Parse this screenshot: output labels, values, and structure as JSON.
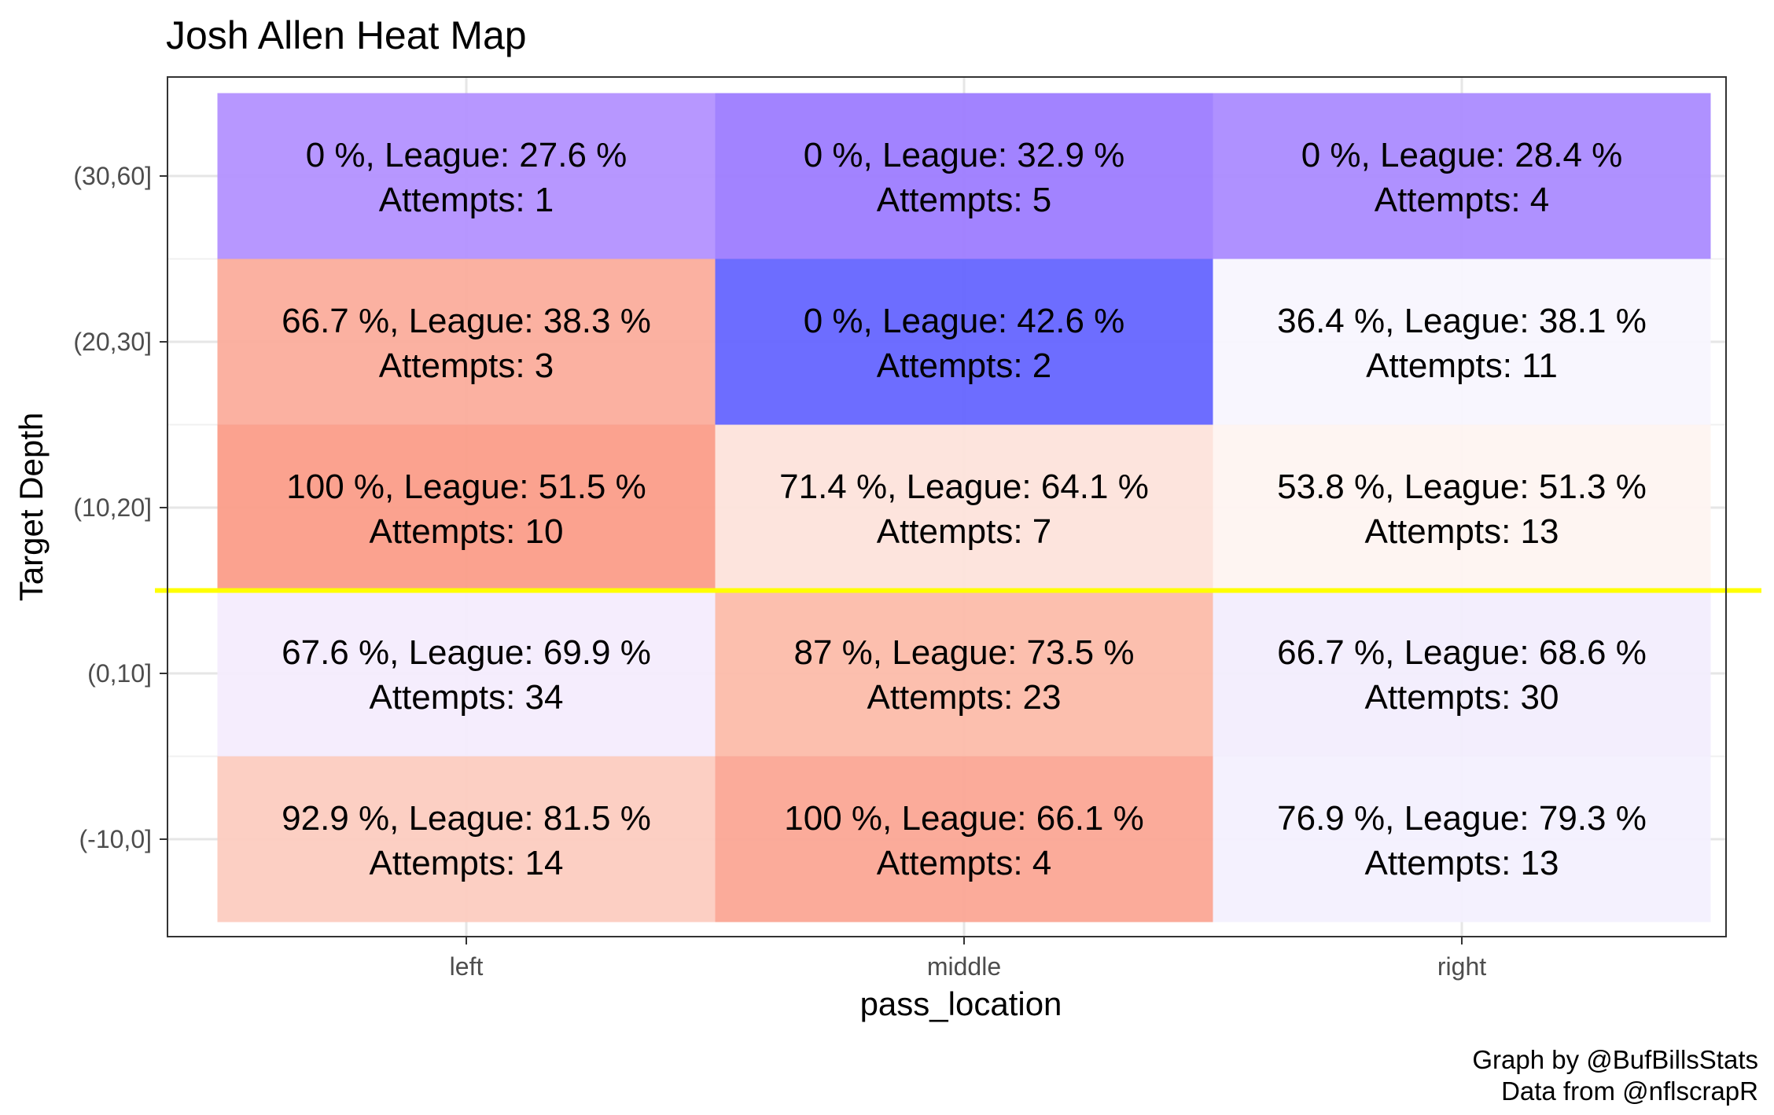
{
  "chart_data": {
    "type": "heatmap",
    "title": "Josh Allen Heat Map",
    "xlabel": "pass_location",
    "ylabel": "Target Depth",
    "x_categories": [
      "left",
      "middle",
      "right"
    ],
    "y_categories": [
      "(-10,0]",
      "(0,10]",
      "(10,20]",
      "(20,30]",
      "(30,60]"
    ],
    "grid": true,
    "reference_line": {
      "between_y": [
        "(0,10]",
        "(10,20]"
      ],
      "color": "#ffff00"
    },
    "cells": [
      {
        "x": "left",
        "y": "(30,60]",
        "label": "0 %, League: 27.6 %",
        "attempts_label": "Attempts: 1",
        "completion_pct": 0,
        "league_pct": 27.6,
        "attempts": 1,
        "color": "#b28fff"
      },
      {
        "x": "middle",
        "y": "(30,60]",
        "label": "0 %, League: 32.9 %",
        "attempts_label": "Attempts: 5",
        "completion_pct": 0,
        "league_pct": 32.9,
        "attempts": 5,
        "color": "#9b7aff"
      },
      {
        "x": "right",
        "y": "(30,60]",
        "label": "0 %, League: 28.4 %",
        "attempts_label": "Attempts: 4",
        "completion_pct": 0,
        "league_pct": 28.4,
        "attempts": 4,
        "color": "#a989ff"
      },
      {
        "x": "left",
        "y": "(20,30]",
        "label": "66.7 %, League: 38.3 %",
        "attempts_label": "Attempts: 3",
        "completion_pct": 66.7,
        "league_pct": 38.3,
        "attempts": 3,
        "color": "#fbab9a"
      },
      {
        "x": "middle",
        "y": "(20,30]",
        "label": "0 %, League: 42.6 %",
        "attempts_label": "Attempts: 2",
        "completion_pct": 0,
        "league_pct": 42.6,
        "attempts": 2,
        "color": "#6262ff"
      },
      {
        "x": "right",
        "y": "(20,30]",
        "label": "36.4 %, League: 38.1 %",
        "attempts_label": "Attempts: 11",
        "completion_pct": 36.4,
        "league_pct": 38.1,
        "attempts": 11,
        "color": "#f8f5fe"
      },
      {
        "x": "left",
        "y": "(10,20]",
        "label": "100 %, League: 51.5 %",
        "attempts_label": "Attempts: 10",
        "completion_pct": 100,
        "league_pct": 51.5,
        "attempts": 10,
        "color": "#fb9b87"
      },
      {
        "x": "middle",
        "y": "(10,20]",
        "label": "71.4 %, League: 64.1 %",
        "attempts_label": "Attempts: 7",
        "completion_pct": 71.4,
        "league_pct": 64.1,
        "attempts": 7,
        "color": "#fde2da"
      },
      {
        "x": "right",
        "y": "(10,20]",
        "label": "53.8 %, League: 51.3 %",
        "attempts_label": "Attempts: 13",
        "completion_pct": 53.8,
        "league_pct": 51.3,
        "attempts": 13,
        "color": "#fef4f1"
      },
      {
        "x": "left",
        "y": "(0,10]",
        "label": "67.6 %, League: 69.9 %",
        "attempts_label": "Attempts: 34",
        "completion_pct": 67.6,
        "league_pct": 69.9,
        "attempts": 34,
        "color": "#f4ecfd"
      },
      {
        "x": "middle",
        "y": "(0,10]",
        "label": "87 %, League: 73.5 %",
        "attempts_label": "Attempts: 23",
        "completion_pct": 87,
        "league_pct": 73.5,
        "attempts": 23,
        "color": "#fcbaa8"
      },
      {
        "x": "right",
        "y": "(0,10]",
        "label": "66.7 %, League: 68.6 %",
        "attempts_label": "Attempts: 30",
        "completion_pct": 66.7,
        "league_pct": 68.6,
        "attempts": 30,
        "color": "#f2edfd"
      },
      {
        "x": "left",
        "y": "(-10,0]",
        "label": "92.9 %, League: 81.5 %",
        "attempts_label": "Attempts: 14",
        "completion_pct": 92.9,
        "league_pct": 81.5,
        "attempts": 14,
        "color": "#fccbbe"
      },
      {
        "x": "middle",
        "y": "(-10,0]",
        "label": "100 %, League: 66.1 %",
        "attempts_label": "Attempts: 4",
        "completion_pct": 100,
        "league_pct": 66.1,
        "attempts": 4,
        "color": "#fba592"
      },
      {
        "x": "right",
        "y": "(-10,0]",
        "label": "76.9 %, League: 79.3 %",
        "attempts_label": "Attempts: 13",
        "completion_pct": 76.9,
        "league_pct": 79.3,
        "attempts": 13,
        "color": "#f3f0fe"
      }
    ],
    "caption": [
      "Graph by @BufBillsStats",
      "Data from @nflscrapR"
    ]
  }
}
